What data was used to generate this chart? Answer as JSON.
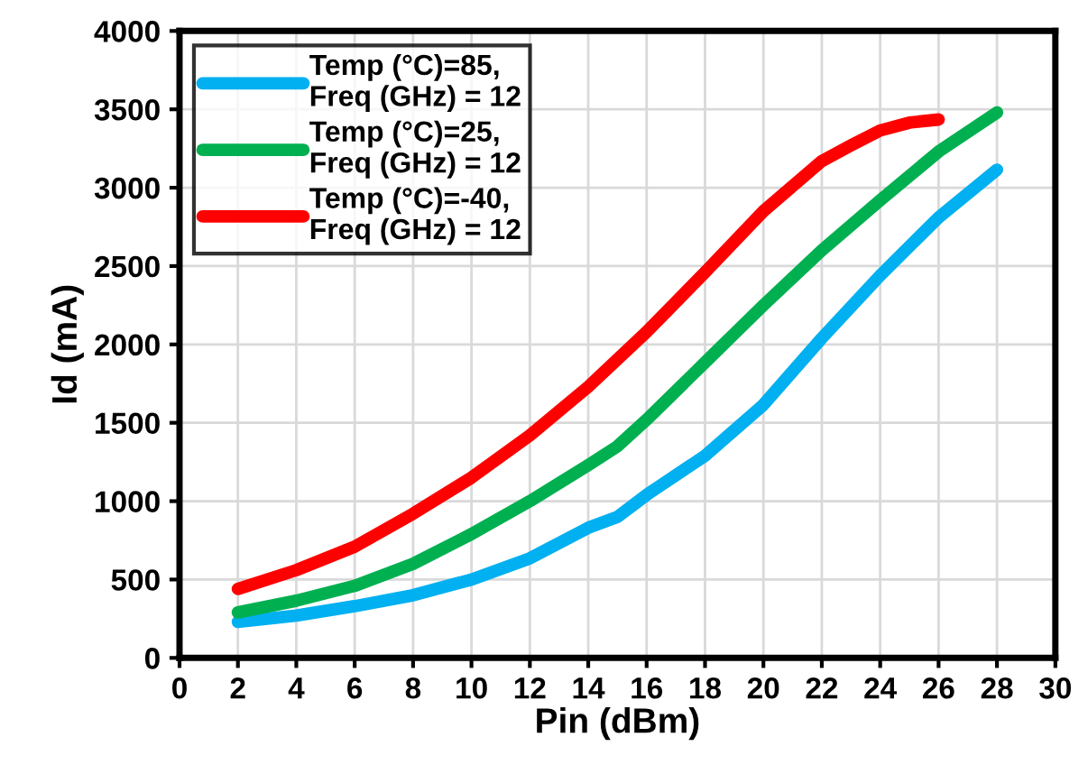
{
  "chart_data": {
    "type": "line",
    "xlabel": "Pin (dBm)",
    "ylabel": "Id (mA)",
    "xlim": [
      0,
      30
    ],
    "xticks": [
      0,
      2,
      4,
      6,
      8,
      10,
      12,
      14,
      16,
      18,
      20,
      22,
      24,
      26,
      28,
      30
    ],
    "ylim": [
      0,
      4000
    ],
    "yticks": [
      0,
      500,
      1000,
      1500,
      2000,
      2500,
      3000,
      3500,
      4000
    ],
    "grid": true,
    "legend": "top left",
    "marker": "none",
    "line_style": "solid",
    "series": [
      {
        "name": "Temp (°C)=85,\nFreq (GHz) = 12",
        "color": "#00b0f0",
        "x": [
          2,
          4,
          6,
          8,
          10,
          12,
          14,
          15,
          16,
          18,
          20,
          22,
          24,
          26,
          28
        ],
        "values": [
          230,
          270,
          330,
          400,
          500,
          635,
          830,
          900,
          1040,
          1290,
          1615,
          2040,
          2440,
          2810,
          3115
        ]
      },
      {
        "name": "Temp (°C)=25,\nFreq (GHz) = 12",
        "color": "#00b050",
        "x": [
          2,
          4,
          6,
          8,
          10,
          12,
          14,
          15,
          16,
          18,
          20,
          22,
          24,
          26,
          28
        ],
        "values": [
          290,
          365,
          460,
          600,
          790,
          1000,
          1230,
          1350,
          1520,
          1885,
          2250,
          2600,
          2920,
          3230,
          3480
        ]
      },
      {
        "name": "Temp (°C)=-40,\nFreq (GHz) = 12",
        "color": "#ff0000",
        "x": [
          2,
          4,
          6,
          8,
          10,
          12,
          14,
          16,
          18,
          20,
          22,
          23,
          24,
          25,
          26
        ],
        "values": [
          440,
          560,
          710,
          920,
          1150,
          1420,
          1730,
          2080,
          2460,
          2850,
          3170,
          3270,
          3365,
          3415,
          3435
        ]
      }
    ]
  }
}
